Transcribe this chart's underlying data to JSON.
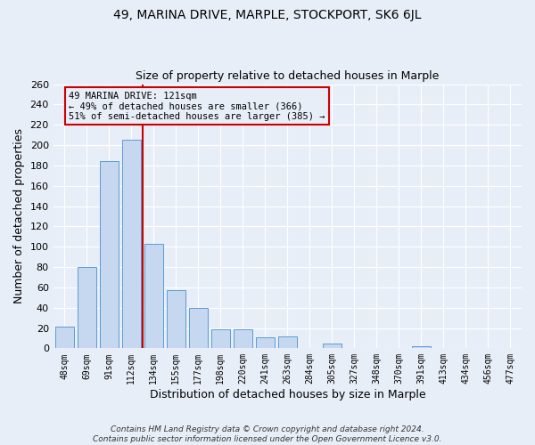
{
  "title": "49, MARINA DRIVE, MARPLE, STOCKPORT, SK6 6JL",
  "subtitle": "Size of property relative to detached houses in Marple",
  "xlabel": "Distribution of detached houses by size in Marple",
  "ylabel": "Number of detached properties",
  "bar_labels": [
    "48sqm",
    "69sqm",
    "91sqm",
    "112sqm",
    "134sqm",
    "155sqm",
    "177sqm",
    "198sqm",
    "220sqm",
    "241sqm",
    "263sqm",
    "284sqm",
    "305sqm",
    "327sqm",
    "348sqm",
    "370sqm",
    "391sqm",
    "413sqm",
    "434sqm",
    "456sqm",
    "477sqm"
  ],
  "bar_values": [
    21,
    80,
    184,
    205,
    103,
    57,
    40,
    19,
    19,
    11,
    12,
    0,
    5,
    0,
    0,
    0,
    2,
    0,
    0,
    0,
    0
  ],
  "bar_color": "#c5d8f0",
  "bar_edge_color": "#5b9bd5",
  "vline_color": "#cc0000",
  "vline_pos": 3.5,
  "ylim": [
    0,
    260
  ],
  "yticks": [
    0,
    20,
    40,
    60,
    80,
    100,
    120,
    140,
    160,
    180,
    200,
    220,
    240,
    260
  ],
  "annotation_title": "49 MARINA DRIVE: 121sqm",
  "annotation_line1": "← 49% of detached houses are smaller (366)",
  "annotation_line2": "51% of semi-detached houses are larger (385) →",
  "annotation_box_color": "#cc0000",
  "footer_line1": "Contains HM Land Registry data © Crown copyright and database right 2024.",
  "footer_line2": "Contains public sector information licensed under the Open Government Licence v3.0.",
  "background_color": "#e8eef8",
  "grid_color": "#ffffff"
}
